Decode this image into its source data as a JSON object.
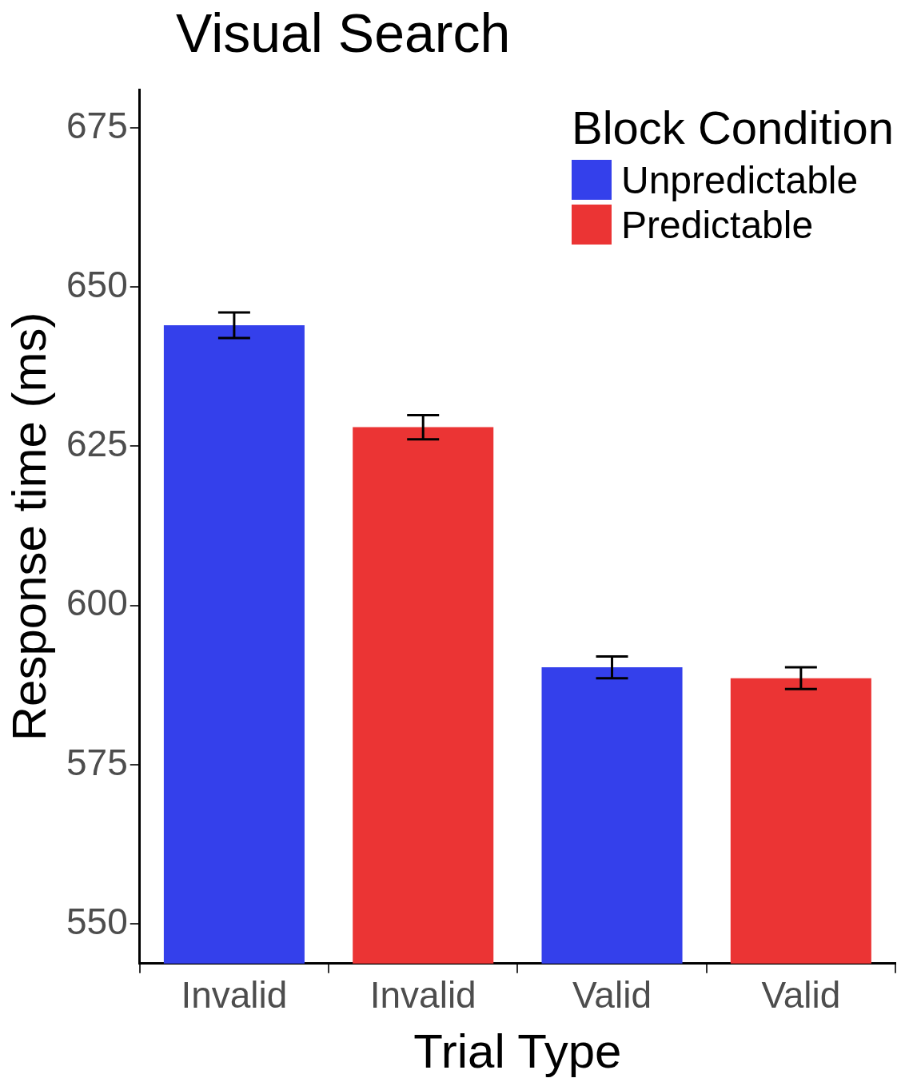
{
  "chart_data": {
    "type": "bar",
    "title": "Visual Search",
    "xlabel": "Trial Type",
    "ylabel": "Response time (ms)",
    "legend_title": "Block Condition",
    "legend": "top right",
    "categories": [
      "Invalid",
      "Invalid",
      "Valid",
      "Valid"
    ],
    "series": [
      {
        "name": "Unpredictable",
        "color": "#3440eb",
        "values": [
          644,
          null,
          590.3,
          null
        ],
        "errors": [
          2,
          null,
          1.7,
          null
        ]
      },
      {
        "name": "Predictable",
        "color": "#eb3434",
        "values": [
          null,
          628,
          null,
          588.6
        ],
        "errors": [
          null,
          1.9,
          null,
          1.7
        ]
      }
    ],
    "ylim": [
      543.8,
      681
    ],
    "yticks": [
      550,
      575,
      600,
      625,
      650,
      675
    ]
  }
}
